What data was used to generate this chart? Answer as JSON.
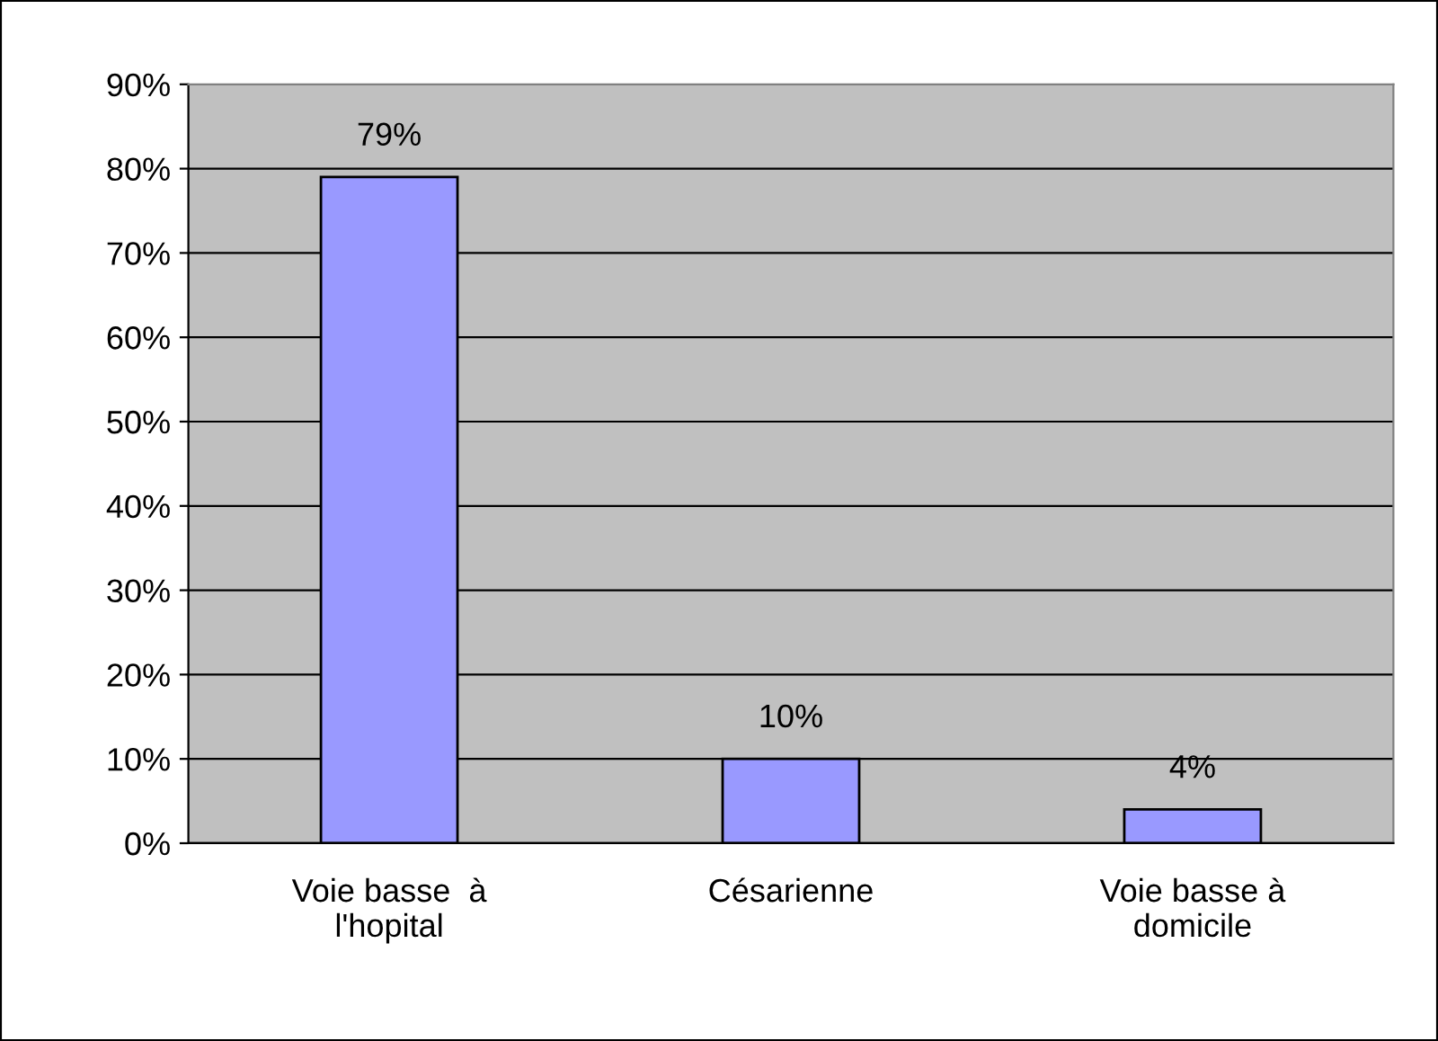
{
  "chart_data": {
    "type": "bar",
    "categories": [
      "Voie basse  à\nl'hopital",
      "Césarienne",
      "Voie basse à\ndomicile"
    ],
    "values": [
      79,
      10,
      4
    ],
    "value_labels": [
      "79%",
      "10%",
      "4%"
    ],
    "color": "#9999ff",
    "ylim": [
      0,
      90
    ],
    "yticks": [
      {
        "value": 0,
        "label": "0%"
      },
      {
        "value": 10,
        "label": "10%"
      },
      {
        "value": 20,
        "label": "20%"
      },
      {
        "value": 30,
        "label": "30%"
      },
      {
        "value": 40,
        "label": "40%"
      },
      {
        "value": 50,
        "label": "50%"
      },
      {
        "value": 60,
        "label": "60%"
      },
      {
        "value": 70,
        "label": "70%"
      },
      {
        "value": 80,
        "label": "80%"
      },
      {
        "value": 90,
        "label": "90%"
      }
    ],
    "grid": "y"
  }
}
